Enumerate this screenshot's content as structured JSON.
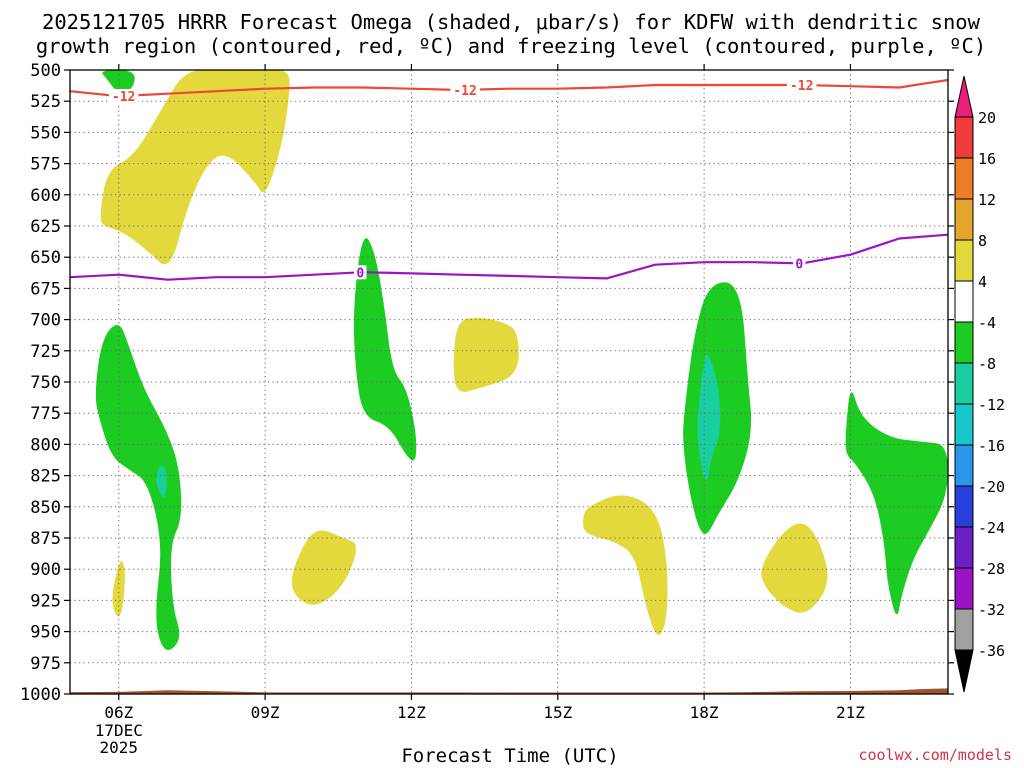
{
  "chart_data": {
    "type": "contour",
    "title_line1": "2025121705 HRRR Forecast Omega (shaded, μbar/s) for KDFW with dendritic snow",
    "title_line2": "growth region (contoured, red, ºC) and freezing level (contoured, purple, ºC)",
    "xlabel": "Forecast Time (UTC)",
    "ylabel": "",
    "credit": "coolwx.com/models",
    "x_range_hours": [
      5,
      23
    ],
    "x_ticks": [
      {
        "hour": 6,
        "label": "06Z",
        "sub1": "17DEC",
        "sub2": "2025"
      },
      {
        "hour": 9,
        "label": "09Z"
      },
      {
        "hour": 12,
        "label": "12Z"
      },
      {
        "hour": 15,
        "label": "15Z"
      },
      {
        "hour": 18,
        "label": "18Z"
      },
      {
        "hour": 21,
        "label": "21Z"
      }
    ],
    "y_range_hpa": [
      500,
      1000
    ],
    "y_ticks": [
      500,
      525,
      550,
      575,
      600,
      625,
      650,
      675,
      700,
      725,
      750,
      775,
      800,
      825,
      850,
      875,
      900,
      925,
      950,
      975,
      1000
    ],
    "colorbar": {
      "labels": [
        "20",
        "16",
        "12",
        "8",
        "4",
        "-4",
        "-8",
        "-12",
        "-16",
        "-20",
        "-24",
        "-28",
        "-32",
        "-36"
      ],
      "top_color": "#e8207a",
      "bottom_color": "#000000",
      "bands": [
        {
          "range": [
            16,
            20
          ],
          "color": "#ef3b3b"
        },
        {
          "range": [
            12,
            16
          ],
          "color": "#ee7d28"
        },
        {
          "range": [
            8,
            12
          ],
          "color": "#e5a62f"
        },
        {
          "range": [
            4,
            8
          ],
          "color": "#e3d93c"
        },
        {
          "range": [
            -4,
            4
          ],
          "color": "#ffffff"
        },
        {
          "range": [
            -8,
            -4
          ],
          "color": "#1ccc22"
        },
        {
          "range": [
            -12,
            -8
          ],
          "color": "#19cfa0"
        },
        {
          "range": [
            -16,
            -12
          ],
          "color": "#18c7c9"
        },
        {
          "range": [
            -20,
            -16
          ],
          "color": "#2a96ea"
        },
        {
          "range": [
            -24,
            -20
          ],
          "color": "#2740db"
        },
        {
          "range": [
            -28,
            -24
          ],
          "color": "#6b1fc6"
        },
        {
          "range": [
            -32,
            -28
          ],
          "color": "#9b12c4"
        },
        {
          "range": [
            -36,
            -32
          ],
          "color": "#a0a0a0"
        }
      ]
    },
    "contour_lines": [
      {
        "name": "dendritic-minus12C",
        "value_label": "-12",
        "color": "#ef4638",
        "points": [
          [
            5.0,
            517
          ],
          [
            6.0,
            521
          ],
          [
            7.0,
            519
          ],
          [
            8.0,
            517
          ],
          [
            9.0,
            515
          ],
          [
            10.0,
            514
          ],
          [
            11.0,
            514
          ],
          [
            12.0,
            515
          ],
          [
            13.0,
            516
          ],
          [
            14.0,
            515
          ],
          [
            15.0,
            515
          ],
          [
            16.0,
            514
          ],
          [
            17.0,
            512
          ],
          [
            18.0,
            512
          ],
          [
            19.0,
            512
          ],
          [
            20.0,
            512
          ],
          [
            21.0,
            513
          ],
          [
            22.0,
            514
          ],
          [
            22.5,
            511
          ],
          [
            23.0,
            508
          ]
        ],
        "label_hours": [
          6.1,
          13.1,
          20.0
        ]
      },
      {
        "name": "freezing-level-0C",
        "value_label": "0",
        "color": "#9a14c4",
        "points": [
          [
            5.0,
            666
          ],
          [
            6.0,
            664
          ],
          [
            7.0,
            668
          ],
          [
            8.0,
            666
          ],
          [
            9.0,
            666
          ],
          [
            10.0,
            664
          ],
          [
            11.0,
            662
          ],
          [
            12.0,
            663
          ],
          [
            13.0,
            664
          ],
          [
            14.0,
            665
          ],
          [
            15.0,
            666
          ],
          [
            16.0,
            667
          ],
          [
            17.0,
            656
          ],
          [
            18.0,
            654
          ],
          [
            19.0,
            654
          ],
          [
            20.0,
            655
          ],
          [
            21.0,
            648
          ],
          [
            22.0,
            635
          ],
          [
            23.0,
            632
          ]
        ],
        "label_hours": [
          10.95,
          19.95
        ]
      }
    ],
    "shaded_regions": [
      {
        "name": "omega-pos-a",
        "band": "4 to 8",
        "points": [
          [
            5.6,
            620
          ],
          [
            5.75,
            580
          ],
          [
            6.3,
            570
          ],
          [
            6.9,
            530
          ],
          [
            7.35,
            500
          ],
          [
            8.1,
            500
          ],
          [
            9.0,
            500
          ],
          [
            9.5,
            500
          ],
          [
            9.5,
            520
          ],
          [
            9.35,
            560
          ],
          [
            9.0,
            603
          ],
          [
            8.8,
            590
          ],
          [
            8.2,
            565
          ],
          [
            7.8,
            575
          ],
          [
            7.4,
            610
          ],
          [
            7.05,
            662
          ],
          [
            6.6,
            645
          ],
          [
            6.1,
            630
          ],
          [
            5.7,
            625
          ]
        ]
      },
      {
        "name": "omega-pos-b",
        "band": "4 to 8",
        "points": [
          [
            13.9,
            702
          ],
          [
            14.2,
            710
          ],
          [
            14.2,
            745
          ],
          [
            13.4,
            755
          ],
          [
            12.9,
            760
          ],
          [
            12.85,
            730
          ],
          [
            12.95,
            700
          ],
          [
            13.4,
            698
          ]
        ]
      },
      {
        "name": "omega-pos-c",
        "band": "4 to 8",
        "points": [
          [
            9.55,
            900
          ],
          [
            10.0,
            865
          ],
          [
            10.6,
            875
          ],
          [
            10.95,
            880
          ],
          [
            10.6,
            915
          ],
          [
            10.0,
            932
          ],
          [
            9.55,
            920
          ]
        ]
      },
      {
        "name": "omega-pos-d",
        "band": "4 to 8",
        "points": [
          [
            15.5,
            860
          ],
          [
            15.6,
            850
          ],
          [
            16.3,
            838
          ],
          [
            17.0,
            850
          ],
          [
            17.25,
            890
          ],
          [
            17.25,
            940
          ],
          [
            17.05,
            958
          ],
          [
            16.8,
            930
          ],
          [
            16.6,
            890
          ],
          [
            16.2,
            878
          ],
          [
            15.55,
            872
          ]
        ]
      },
      {
        "name": "omega-pos-e",
        "band": "4 to 8",
        "points": [
          [
            19.15,
            898
          ],
          [
            19.6,
            870
          ],
          [
            20.05,
            860
          ],
          [
            20.4,
            880
          ],
          [
            20.6,
            912
          ],
          [
            20.1,
            938
          ],
          [
            19.6,
            930
          ],
          [
            19.2,
            912
          ]
        ]
      },
      {
        "name": "omega-pos-f",
        "band": "4 to 8",
        "points": [
          [
            5.85,
            920
          ],
          [
            6.05,
            888
          ],
          [
            6.15,
            905
          ],
          [
            6.05,
            940
          ],
          [
            5.9,
            935
          ]
        ]
      },
      {
        "name": "omega-neg-a",
        "band": "-8 to -4",
        "points": [
          [
            5.5,
            760
          ],
          [
            5.65,
            715
          ],
          [
            6.0,
            700
          ],
          [
            6.2,
            720
          ],
          [
            6.5,
            755
          ],
          [
            7.0,
            790
          ],
          [
            7.25,
            820
          ],
          [
            7.3,
            860
          ],
          [
            7.05,
            880
          ],
          [
            7.1,
            930
          ],
          [
            7.3,
            955
          ],
          [
            7.0,
            968
          ],
          [
            6.8,
            955
          ],
          [
            6.75,
            930
          ],
          [
            6.9,
            880
          ],
          [
            6.6,
            830
          ],
          [
            6.2,
            820
          ],
          [
            5.85,
            810
          ],
          [
            5.6,
            780
          ]
        ]
      },
      {
        "name": "omega-neg-b",
        "band": "-8 to -4",
        "points": [
          [
            5.6,
            500
          ],
          [
            6.35,
            500
          ],
          [
            6.3,
            515
          ],
          [
            6.0,
            520
          ],
          [
            5.75,
            507
          ]
        ]
      },
      {
        "name": "omega-neg-c",
        "band": "-8 to -4",
        "points": [
          [
            10.8,
            690
          ],
          [
            11.0,
            628
          ],
          [
            11.25,
            645
          ],
          [
            11.45,
            690
          ],
          [
            11.6,
            740
          ],
          [
            11.9,
            755
          ],
          [
            12.1,
            790
          ],
          [
            12.1,
            815
          ],
          [
            11.9,
            810
          ],
          [
            11.55,
            785
          ],
          [
            11.0,
            778
          ],
          [
            10.85,
            740
          ]
        ]
      },
      {
        "name": "omega-neg-d",
        "band": "-8 to -4",
        "points": [
          [
            17.6,
            770
          ],
          [
            17.8,
            710
          ],
          [
            18.1,
            670
          ],
          [
            18.75,
            670
          ],
          [
            18.9,
            750
          ],
          [
            19.0,
            790
          ],
          [
            18.7,
            830
          ],
          [
            18.3,
            855
          ],
          [
            18.0,
            878
          ],
          [
            17.75,
            850
          ],
          [
            17.55,
            800
          ]
        ]
      },
      {
        "name": "omega-neg-e",
        "band": "-8 to -4",
        "points": [
          [
            20.9,
            790
          ],
          [
            21.0,
            750
          ],
          [
            21.2,
            778
          ],
          [
            21.8,
            795
          ],
          [
            22.5,
            798
          ],
          [
            23.0,
            800
          ],
          [
            23.0,
            840
          ],
          [
            22.6,
            870
          ],
          [
            22.3,
            890
          ],
          [
            22.05,
            920
          ],
          [
            21.95,
            943
          ],
          [
            21.75,
            910
          ],
          [
            21.7,
            880
          ],
          [
            21.5,
            840
          ],
          [
            21.1,
            815
          ],
          [
            20.9,
            808
          ]
        ]
      },
      {
        "name": "omega-neg-f",
        "band": "-12 to -8",
        "points": [
          [
            17.85,
            785
          ],
          [
            17.95,
            745
          ],
          [
            18.05,
            722
          ],
          [
            18.3,
            752
          ],
          [
            18.35,
            790
          ],
          [
            18.15,
            810
          ],
          [
            18.05,
            835
          ],
          [
            17.9,
            810
          ]
        ]
      },
      {
        "name": "omega-neg-g",
        "band": "-12 to -8",
        "points": [
          [
            6.75,
            828
          ],
          [
            6.85,
            815
          ],
          [
            7.0,
            822
          ],
          [
            6.95,
            845
          ],
          [
            6.82,
            838
          ]
        ]
      }
    ],
    "surface_terrain_color": "#a0522d"
  }
}
